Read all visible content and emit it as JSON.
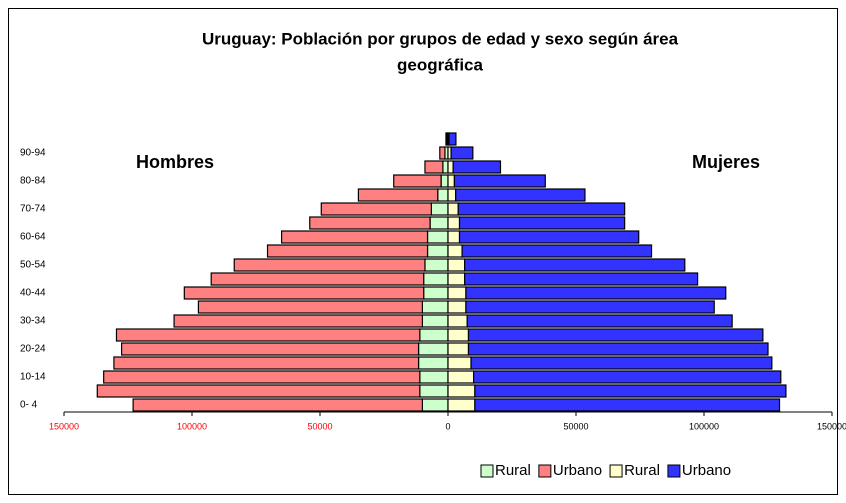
{
  "chart_data": {
    "type": "pyramid",
    "title": [
      "Uruguay: Población por grupos de edad y sexo según área",
      "geográfica"
    ],
    "annotations": [
      "Hombres",
      "Mujeres"
    ],
    "categories": [
      "0- 4",
      null,
      "10-14",
      null,
      "20-24",
      null,
      "30-34",
      null,
      "40-44",
      null,
      "50-54",
      null,
      "60-64",
      null,
      "70-74",
      null,
      "80-84",
      null,
      "90-94",
      null
    ],
    "series": [
      {
        "name": "Rural",
        "color": "#ccffcc",
        "values": [
          -10000,
          -11000,
          -11000,
          -11500,
          -11500,
          -11000,
          -10000,
          -10000,
          -9500,
          -9500,
          -9000,
          -8000,
          -8000,
          -7000,
          -6500,
          -4000,
          -2700,
          -2000,
          -1200,
          -400
        ]
      },
      {
        "name": "Urbano",
        "color": "#ff8080",
        "values": [
          -113000,
          -126000,
          -123500,
          -119000,
          -116000,
          -118500,
          -97000,
          -87500,
          -93500,
          -83000,
          -74500,
          -62500,
          -57000,
          -47000,
          -43000,
          -31000,
          -18500,
          -7000,
          -2000,
          -400
        ]
      },
      {
        "name": "Rural",
        "color": "#ffffcc",
        "values": [
          10500,
          10500,
          10000,
          9000,
          8000,
          8000,
          7500,
          7000,
          7000,
          6500,
          6500,
          5500,
          4500,
          4500,
          4000,
          3000,
          2500,
          2000,
          1200,
          400
        ]
      },
      {
        "name": "Urbano",
        "color": "#3333ff",
        "values": [
          119000,
          121500,
          120000,
          117500,
          117000,
          115000,
          103500,
          97000,
          101500,
          91000,
          86000,
          74000,
          70000,
          64500,
          65000,
          50500,
          35500,
          18500,
          8500,
          2700
        ]
      }
    ],
    "xlim": [
      -150000,
      150000
    ],
    "xticks": [
      {
        "value": -150000,
        "label": "150000"
      },
      {
        "value": -100000,
        "label": "100000"
      },
      {
        "value": -50000,
        "label": "50000"
      },
      0,
      50000,
      100000,
      150000
    ],
    "negative_tick_color": "#ff0000",
    "grid": false,
    "legend": "bottom-right"
  }
}
